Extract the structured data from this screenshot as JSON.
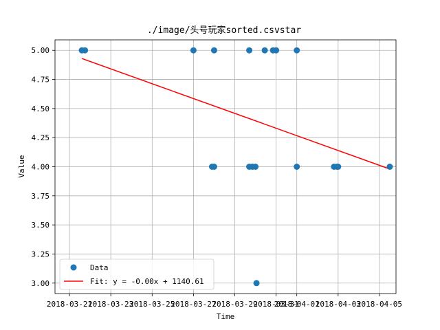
{
  "chart_data": {
    "type": "scatter",
    "title": "./image/头号玩家sorted.csvstar",
    "xlabel": "Time",
    "ylabel": "Value",
    "x_tick_labels": [
      "2018-03-21",
      "2018-03-23",
      "2018-03-25",
      "2018-03-27",
      "2018-03-29",
      "2018-03-31",
      "2018-04-01",
      "2018-04-03",
      "2018-04-05"
    ],
    "y_tick_labels": [
      "3.00",
      "3.25",
      "3.50",
      "3.75",
      "4.00",
      "4.25",
      "4.50",
      "4.75",
      "5.00"
    ],
    "ylim": [
      2.91,
      5.09
    ],
    "xlim_days": [
      -0.7,
      15.8
    ],
    "x_tick_days": [
      0,
      2,
      4,
      6,
      8,
      10,
      11,
      13,
      15
    ],
    "grid": true,
    "legend_position": "lower-left",
    "series": [
      {
        "name": "Data",
        "kind": "scatter",
        "color": "#1f77b4",
        "points": [
          {
            "x_days": 0.6,
            "y": 5.0
          },
          {
            "x_days": 0.75,
            "y": 5.0
          },
          {
            "x_days": 6.0,
            "y": 5.0
          },
          {
            "x_days": 7.0,
            "y": 5.0
          },
          {
            "x_days": 8.7,
            "y": 5.0
          },
          {
            "x_days": 9.45,
            "y": 5.0
          },
          {
            "x_days": 9.85,
            "y": 5.0
          },
          {
            "x_days": 10.0,
            "y": 5.0
          },
          {
            "x_days": 11.0,
            "y": 5.0
          },
          {
            "x_days": 6.9,
            "y": 4.0
          },
          {
            "x_days": 7.0,
            "y": 4.0
          },
          {
            "x_days": 8.7,
            "y": 4.0
          },
          {
            "x_days": 8.85,
            "y": 4.0
          },
          {
            "x_days": 9.0,
            "y": 4.0
          },
          {
            "x_days": 11.0,
            "y": 4.0
          },
          {
            "x_days": 12.8,
            "y": 4.0
          },
          {
            "x_days": 12.95,
            "y": 4.0
          },
          {
            "x_days": 13.0,
            "y": 4.0
          },
          {
            "x_days": 15.5,
            "y": 4.0
          },
          {
            "x_days": 9.05,
            "y": 3.0
          }
        ]
      },
      {
        "name": "Fit: y = -0.00x + 1140.61",
        "kind": "line",
        "color": "#ff0000",
        "points": [
          {
            "x_days": 0.6,
            "y": 4.93
          },
          {
            "x_days": 15.5,
            "y": 3.98
          }
        ]
      }
    ]
  }
}
